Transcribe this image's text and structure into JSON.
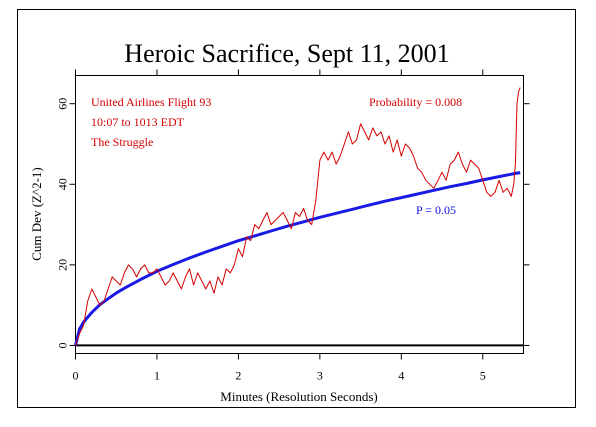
{
  "chart_data": {
    "type": "line",
    "title": "Heroic Sacrifice, Sept 11, 2001",
    "xlabel": "Minutes (Resolution Seconds)",
    "ylabel": "Cum Dev (Z^2-1)",
    "xlim": [
      0,
      5.5
    ],
    "ylim": [
      -2,
      67
    ],
    "x_ticks": [
      0,
      1,
      2,
      3,
      4,
      5
    ],
    "y_ticks": [
      0,
      20,
      40,
      60
    ],
    "annotations": {
      "flight": "United Airlines Flight 93",
      "time": "10:07 to 1013 EDT",
      "struggle": "The Struggle",
      "probability": "Probability = 0.008",
      "p05": "P = 0.05"
    },
    "colors": {
      "cumdev": "#d40000",
      "envelope": "#1a1ae6",
      "baseline": "#000000",
      "annotation_red": "#d40000",
      "annotation_blue": "#1010e0"
    },
    "series": [
      {
        "type": "line",
        "x": [
          0.0,
          0.05,
          0.1,
          0.15,
          0.2,
          0.25,
          0.3,
          0.35,
          0.4,
          0.45,
          0.5,
          0.55,
          0.6,
          0.65,
          0.7,
          0.75,
          0.8,
          0.85,
          0.9,
          0.95,
          1.0,
          1.05,
          1.1,
          1.15,
          1.2,
          1.25,
          1.3,
          1.35,
          1.4,
          1.45,
          1.5,
          1.55,
          1.6,
          1.65,
          1.7,
          1.75,
          1.8,
          1.85,
          1.9,
          1.95,
          2.0,
          2.05,
          2.1,
          2.15,
          2.2,
          2.25,
          2.3,
          2.35,
          2.4,
          2.45,
          2.5,
          2.55,
          2.6,
          2.65,
          2.7,
          2.75,
          2.8,
          2.85,
          2.9,
          2.95,
          3.0,
          3.05,
          3.1,
          3.15,
          3.2,
          3.25,
          3.3,
          3.35,
          3.4,
          3.45,
          3.5,
          3.55,
          3.6,
          3.65,
          3.7,
          3.75,
          3.8,
          3.85,
          3.9,
          3.95,
          4.0,
          4.05,
          4.1,
          4.15,
          4.2,
          4.25,
          4.3,
          4.35,
          4.4,
          4.45,
          4.5,
          4.55,
          4.6,
          4.65,
          4.7,
          4.75,
          4.8,
          4.85,
          4.9,
          4.95,
          5.0,
          5.05,
          5.1,
          5.15,
          5.2,
          5.25,
          5.3,
          5.35,
          5.38,
          5.4,
          5.42,
          5.44,
          5.46
        ],
        "y": [
          0,
          3,
          5,
          11,
          14,
          12,
          10,
          11,
          14,
          17,
          16,
          15,
          18,
          20,
          19,
          17,
          19,
          20,
          18,
          18,
          19,
          17,
          15,
          16,
          18,
          16,
          14,
          17,
          19,
          15,
          18,
          16,
          14,
          16,
          13,
          17,
          15,
          19,
          18,
          20,
          24,
          22,
          27,
          26,
          30,
          29,
          31,
          33,
          30,
          31,
          32,
          33,
          31,
          29,
          33,
          32,
          34,
          31,
          30,
          36,
          46,
          48,
          46,
          48,
          45,
          47,
          50,
          53,
          50,
          51,
          55,
          53,
          51,
          54,
          52,
          53,
          50,
          52,
          48,
          51,
          47,
          50,
          49,
          47,
          44,
          43,
          41,
          40,
          39,
          41,
          43,
          41,
          45,
          46,
          48,
          45,
          43,
          46,
          45,
          44,
          41,
          38,
          37,
          38,
          41,
          38,
          39,
          37,
          40,
          45,
          60,
          63,
          64
        ]
      },
      {
        "name": "P = 0.05",
        "type": "line",
        "x": [
          0.0,
          0.05,
          0.1,
          0.2,
          0.3,
          0.4,
          0.5,
          0.6,
          0.8,
          1.0,
          1.2,
          1.4,
          1.6,
          1.8,
          2.0,
          2.2,
          2.4,
          2.6,
          2.8,
          3.0,
          3.2,
          3.4,
          3.6,
          3.8,
          4.0,
          4.2,
          4.4,
          4.6,
          4.8,
          5.0,
          5.2,
          5.4,
          5.46
        ],
        "y": [
          0,
          4.1,
          5.8,
          8.2,
          10.1,
          11.6,
          13.0,
          14.2,
          16.4,
          18.4,
          20.1,
          21.7,
          23.2,
          24.6,
          26.0,
          27.2,
          28.4,
          29.6,
          30.7,
          31.8,
          32.8,
          33.8,
          34.8,
          35.8,
          36.7,
          37.6,
          38.5,
          39.4,
          40.2,
          41.1,
          41.9,
          42.7,
          42.9
        ]
      },
      {
        "type": "line",
        "x": [
          0,
          5.5
        ],
        "y": [
          0,
          0
        ]
      }
    ]
  }
}
